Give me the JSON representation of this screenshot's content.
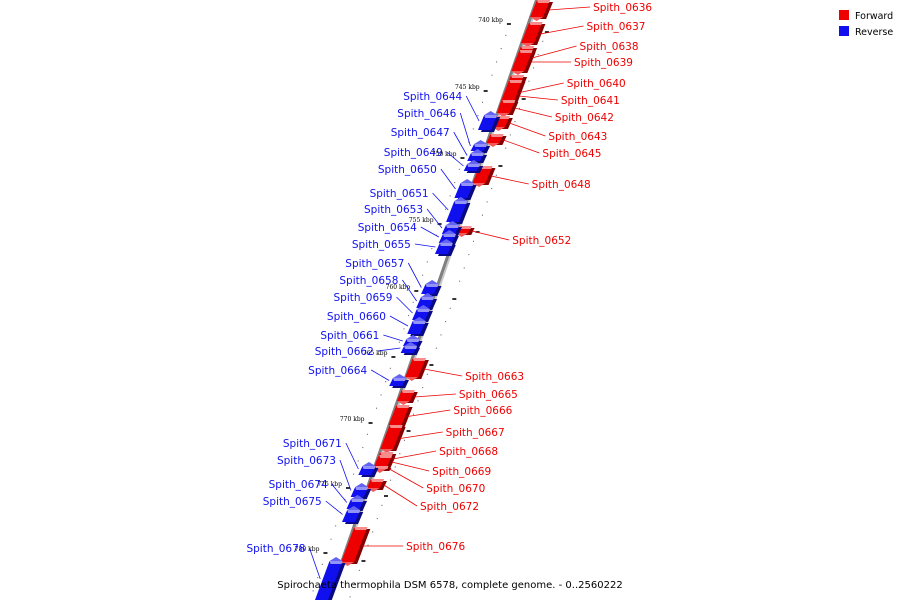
{
  "title": "Spirochaeta thermophila DSM 6578, complete genome. - 0..2560222",
  "colors": {
    "forward": "#ee0000",
    "reverse": "#1010ee",
    "backbone": "#808080",
    "tick": "#000000"
  },
  "legend": [
    {
      "label": "Forward",
      "strand": "forward"
    },
    {
      "label": "Reverse",
      "strand": "reverse"
    }
  ],
  "ticks": [
    "740 kbp",
    "745 kbp",
    "750 kbp",
    "755 kbp",
    "760 kbp",
    "765 kbp",
    "770 kbp",
    "775 kbp",
    "780 kbp"
  ],
  "genes": [
    {
      "name": "Spith_0636",
      "strand": "forward"
    },
    {
      "name": "Spith_0637",
      "strand": "forward"
    },
    {
      "name": "Spith_0638",
      "strand": "forward"
    },
    {
      "name": "Spith_0639",
      "strand": "forward"
    },
    {
      "name": "Spith_0640",
      "strand": "forward"
    },
    {
      "name": "Spith_0641",
      "strand": "forward"
    },
    {
      "name": "Spith_0642",
      "strand": "forward"
    },
    {
      "name": "Spith_0643",
      "strand": "forward"
    },
    {
      "name": "Spith_0644",
      "strand": "reverse"
    },
    {
      "name": "Spith_0645",
      "strand": "forward"
    },
    {
      "name": "Spith_0646",
      "strand": "reverse"
    },
    {
      "name": "Spith_0647",
      "strand": "reverse"
    },
    {
      "name": "Spith_0648",
      "strand": "forward"
    },
    {
      "name": "Spith_0649",
      "strand": "reverse"
    },
    {
      "name": "Spith_0650",
      "strand": "reverse"
    },
    {
      "name": "Spith_0651",
      "strand": "reverse"
    },
    {
      "name": "Spith_0652",
      "strand": "forward"
    },
    {
      "name": "Spith_0653",
      "strand": "reverse"
    },
    {
      "name": "Spith_0654",
      "strand": "reverse"
    },
    {
      "name": "Spith_0655",
      "strand": "reverse"
    },
    {
      "name": "Spith_0657",
      "strand": "reverse"
    },
    {
      "name": "Spith_0658",
      "strand": "reverse"
    },
    {
      "name": "Spith_0659",
      "strand": "reverse"
    },
    {
      "name": "Spith_0660",
      "strand": "reverse"
    },
    {
      "name": "Spith_0661",
      "strand": "reverse"
    },
    {
      "name": "Spith_0662",
      "strand": "reverse"
    },
    {
      "name": "Spith_0663",
      "strand": "forward"
    },
    {
      "name": "Spith_0664",
      "strand": "reverse"
    },
    {
      "name": "Spith_0665",
      "strand": "forward"
    },
    {
      "name": "Spith_0666",
      "strand": "forward"
    },
    {
      "name": "Spith_0667",
      "strand": "forward"
    },
    {
      "name": "Spith_0668",
      "strand": "forward"
    },
    {
      "name": "Spith_0669",
      "strand": "forward"
    },
    {
      "name": "Spith_0670",
      "strand": "forward"
    },
    {
      "name": "Spith_0671",
      "strand": "reverse"
    },
    {
      "name": "Spith_0672",
      "strand": "forward"
    },
    {
      "name": "Spith_0673",
      "strand": "reverse"
    },
    {
      "name": "Spith_0674",
      "strand": "reverse"
    },
    {
      "name": "Spith_0675",
      "strand": "reverse"
    },
    {
      "name": "Spith_0676",
      "strand": "forward"
    },
    {
      "name": "Spith_0678",
      "strand": "reverse"
    }
  ]
}
